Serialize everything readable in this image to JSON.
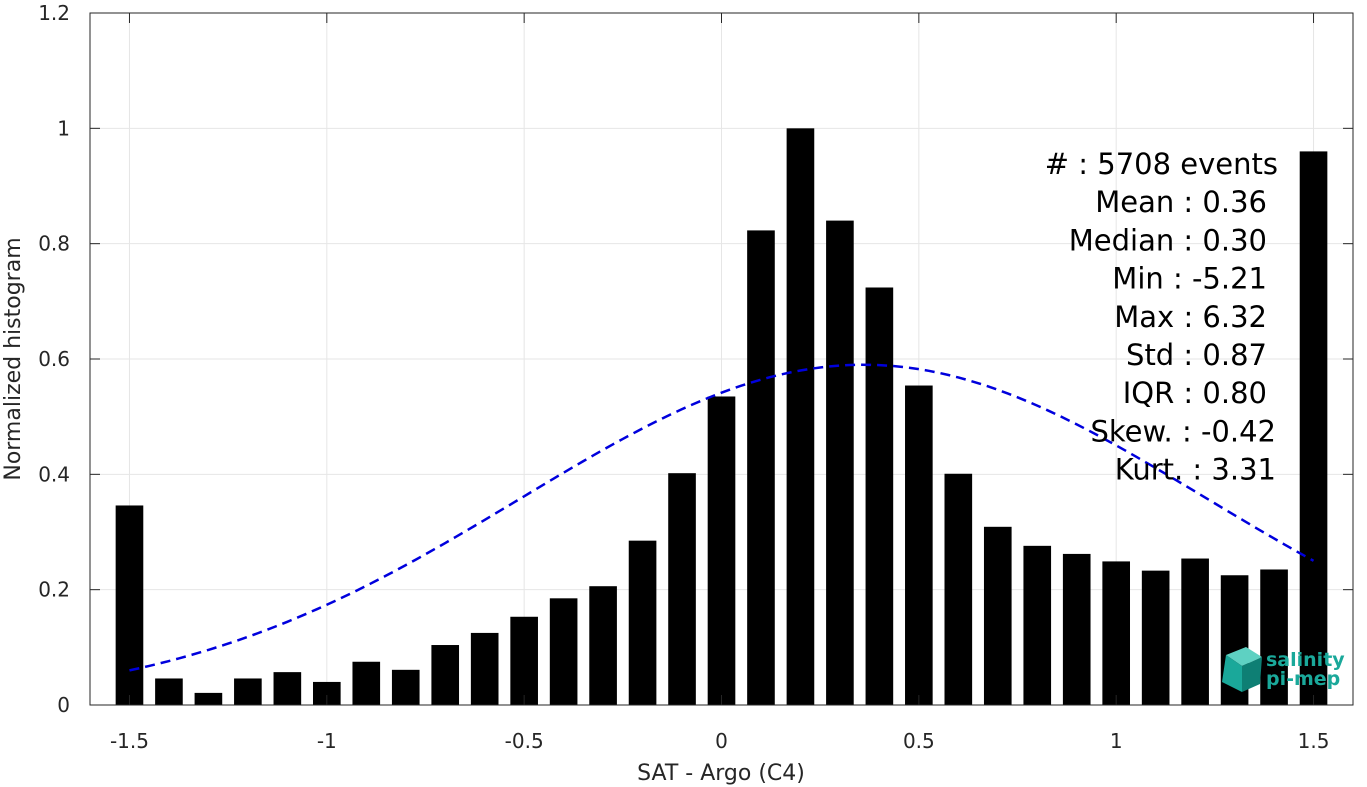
{
  "chart_data": {
    "type": "bar",
    "xlabel": "SAT - Argo (C4)",
    "ylabel": "Normalized histogram",
    "xlim": [
      -1.6,
      1.6
    ],
    "ylim": [
      0,
      1.2
    ],
    "xticks": [
      -1.5,
      -1,
      -0.5,
      0,
      0.5,
      1,
      1.5
    ],
    "xtick_labels": [
      "-1.5",
      "-1",
      "-0.5",
      "0",
      "0.5",
      "1",
      "1.5"
    ],
    "yticks": [
      0,
      0.2,
      0.4,
      0.6,
      0.8,
      1,
      1.2
    ],
    "ytick_labels": [
      "0",
      "0.2",
      "0.4",
      "0.6",
      "0.8",
      "1",
      "1.2"
    ],
    "grid": true,
    "bar_width": 0.07,
    "bar_color": "#000000",
    "x": [
      -1.5,
      -1.4,
      -1.3,
      -1.2,
      -1.1,
      -1.0,
      -0.9,
      -0.8,
      -0.7,
      -0.6,
      -0.5,
      -0.4,
      -0.3,
      -0.2,
      -0.1,
      0.0,
      0.1,
      0.2,
      0.3,
      0.4,
      0.5,
      0.6,
      0.7,
      0.8,
      0.9,
      1.0,
      1.1,
      1.2,
      1.3,
      1.4,
      1.5
    ],
    "values": [
      0.346,
      0.046,
      0.021,
      0.046,
      0.057,
      0.04,
      0.075,
      0.061,
      0.104,
      0.125,
      0.153,
      0.185,
      0.206,
      0.285,
      0.402,
      0.535,
      0.823,
      1.0,
      0.84,
      0.724,
      0.554,
      0.401,
      0.309,
      0.276,
      0.262,
      0.249,
      0.233,
      0.254,
      0.225,
      0.235,
      0.96
    ],
    "fit_curve": {
      "type": "gaussian",
      "style": "dashed",
      "color": "#0000dd",
      "mean": 0.36,
      "std": 0.87,
      "peak": 0.59,
      "x_range": [
        -1.5,
        1.5
      ]
    },
    "stats": [
      "#  : 5708 events",
      "Mean : 0.36",
      "Median : 0.30",
      "Min : -5.21",
      "Max : 6.32",
      "Std : 0.87",
      "IQR : 0.80",
      "Skew. : -0.42",
      "Kurt. : 3.31"
    ]
  },
  "logo": {
    "line1": "salinity",
    "line2": "pi-mep",
    "color": "#1aa89a"
  }
}
